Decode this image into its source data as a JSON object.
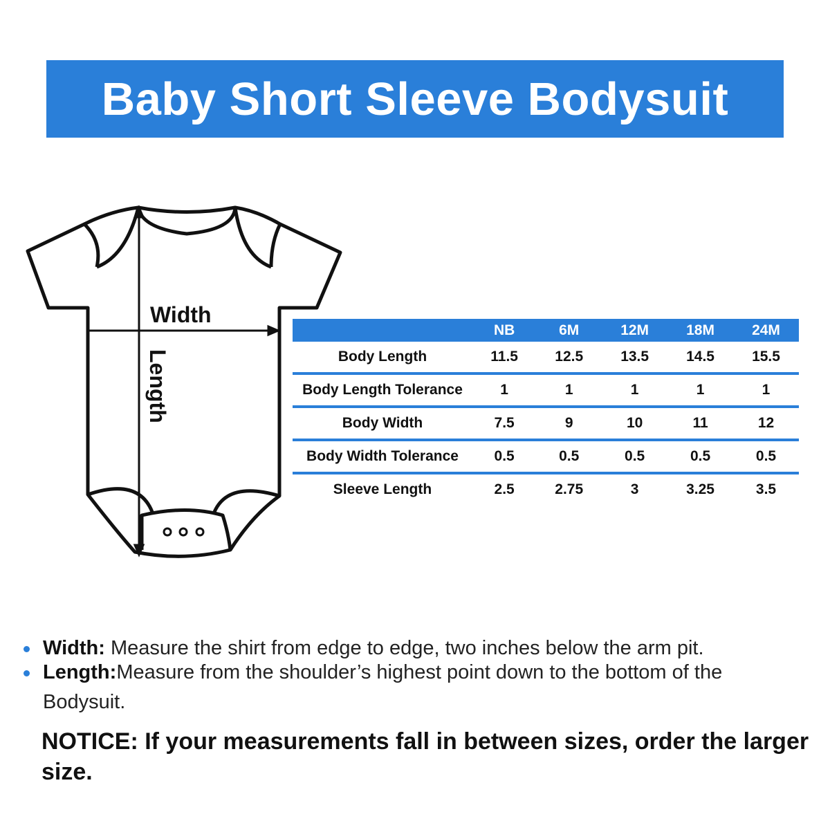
{
  "title": "Baby Short Sleeve Bodysuit",
  "diagram": {
    "width_label": "Width",
    "length_label": "Length"
  },
  "table": {
    "columns": [
      "",
      "NB",
      "6M",
      "12M",
      "18M",
      "24M"
    ],
    "rows": [
      {
        "label": "Body Length",
        "values": [
          "11.5",
          "12.5",
          "13.5",
          "14.5",
          "15.5"
        ]
      },
      {
        "label": "Body Length Tolerance",
        "values": [
          "1",
          "1",
          "1",
          "1",
          "1"
        ]
      },
      {
        "label": "Body Width",
        "values": [
          "7.5",
          "9",
          "10",
          "11",
          "12"
        ]
      },
      {
        "label": "Body Width Tolerance",
        "values": [
          "0.5",
          "0.5",
          "0.5",
          "0.5",
          "0.5"
        ]
      },
      {
        "label": "Sleeve Length",
        "values": [
          "2.5",
          "2.75",
          "3",
          "3.25",
          "3.5"
        ]
      }
    ]
  },
  "notes": [
    {
      "term": "Width:",
      "text": "Measure the shirt from edge to edge, two inches below the arm pit."
    },
    {
      "term": "Length:",
      "text": "Measure from the shoulder’s highest point down to the bottom of the",
      "continuation": "Bodysuit."
    }
  ],
  "notice": "NOTICE: If your measurements fall in between sizes, order the larger size.",
  "colors": {
    "accent": "#2a7fd9"
  }
}
